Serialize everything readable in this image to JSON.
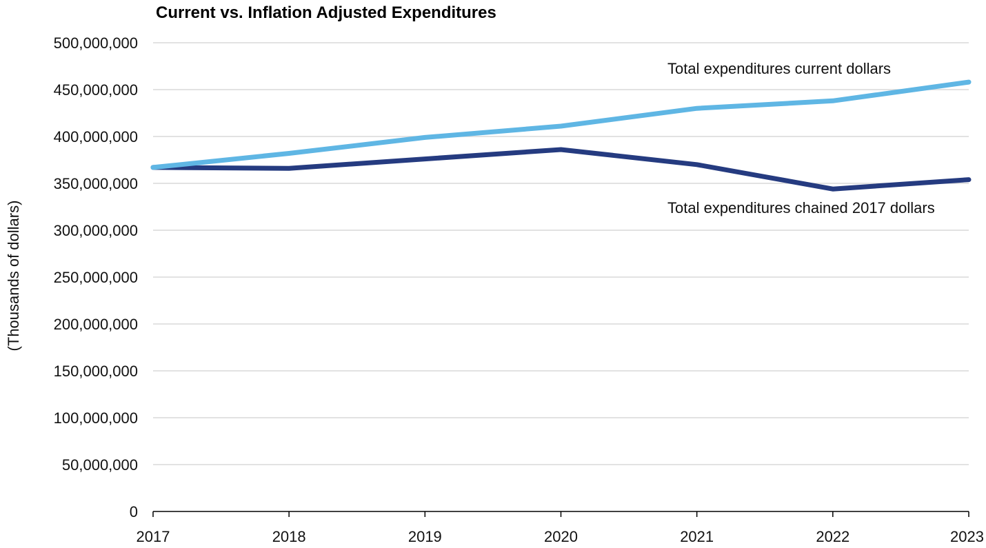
{
  "chart_data": {
    "type": "line",
    "title": "Current vs. Inflation Adjusted Expenditures",
    "xlabel": "",
    "ylabel": "(Thousands of dollars)",
    "categories": [
      "2017",
      "2018",
      "2019",
      "2020",
      "2021",
      "2022",
      "2023"
    ],
    "ylim": [
      0,
      500000000
    ],
    "yticks": [
      0,
      50000000,
      100000000,
      150000000,
      200000000,
      250000000,
      300000000,
      350000000,
      400000000,
      450000000,
      500000000
    ],
    "ytick_labels": [
      "0",
      "50,000,000",
      "100,000,000",
      "150,000,000",
      "200,000,000",
      "250,000,000",
      "300,000,000",
      "350,000,000",
      "400,000,000",
      "450,000,000",
      "500,000,000"
    ],
    "grid": true,
    "series": [
      {
        "name": "Total expenditures current dollars",
        "color": "#5fb6e4",
        "values": [
          367000000,
          382000000,
          399000000,
          411000000,
          430000000,
          438000000,
          458000000
        ]
      },
      {
        "name": "Total expenditures chained 2017 dollars",
        "color": "#253b80",
        "values": [
          367000000,
          366000000,
          376000000,
          386000000,
          370000000,
          344000000,
          354000000
        ]
      }
    ]
  }
}
